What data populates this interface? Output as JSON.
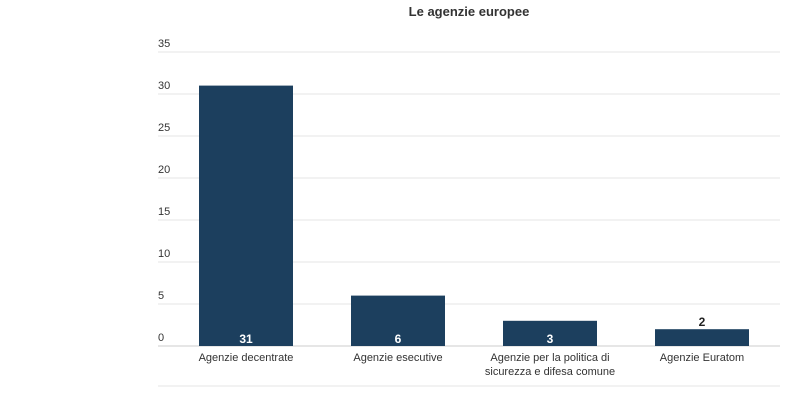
{
  "chart_data": {
    "type": "bar",
    "title": "Le agenzie europee",
    "xlabel": "",
    "ylabel": "",
    "categories": [
      [
        "Agenzie decentrate"
      ],
      [
        "Agenzie esecutive"
      ],
      [
        "Agenzie per la politica di",
        "sicurezza e difesa comune"
      ],
      [
        "Agenzie Euratom"
      ]
    ],
    "values": [
      31,
      6,
      3,
      2
    ],
    "data_labels": [
      "31",
      "6",
      "3",
      "2"
    ],
    "ylim": [
      0,
      35
    ],
    "yticks": [
      0,
      5,
      10,
      15,
      20,
      25,
      30,
      35
    ],
    "grid": true,
    "legend": "none",
    "colors": {
      "bar": "#1c3f5e",
      "grid": "#e6e6e6",
      "axis": "#cccccc",
      "text": "#333333",
      "label_inside": "#ffffff",
      "label_outside": "#222222"
    }
  }
}
